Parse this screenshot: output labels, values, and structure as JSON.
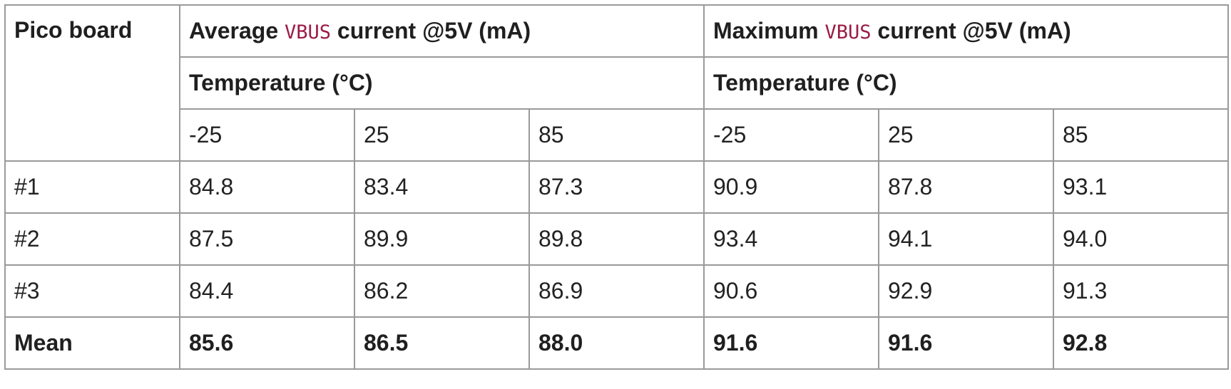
{
  "table": {
    "corner_label": "Pico board",
    "group_headers": [
      {
        "pre": "Average ",
        "code": "VBUS",
        "post": " current @5V (mA)"
      },
      {
        "pre": "Maximum ",
        "code": "VBUS",
        "post": " current @5V (mA)"
      }
    ],
    "sub_headers": [
      "Temperature (°C)",
      "Temperature (°C)"
    ],
    "temps": [
      "-25",
      "25",
      "85",
      "-25",
      "25",
      "85"
    ],
    "rows": [
      {
        "label": "#1",
        "values": [
          "84.8",
          "83.4",
          "87.3",
          "90.9",
          "87.8",
          "93.1"
        ]
      },
      {
        "label": "#2",
        "values": [
          "87.5",
          "89.9",
          "89.8",
          "93.4",
          "94.1",
          "94.0"
        ]
      },
      {
        "label": "#3",
        "values": [
          "84.4",
          "86.2",
          "86.9",
          "90.6",
          "92.9",
          "91.3"
        ]
      },
      {
        "label": "Mean",
        "values": [
          "85.6",
          "86.5",
          "88.0",
          "91.6",
          "91.6",
          "92.8"
        ]
      }
    ]
  },
  "colors": {
    "border": "#9a9a9a",
    "code_text": "#9b1b44",
    "text": "#222222"
  }
}
